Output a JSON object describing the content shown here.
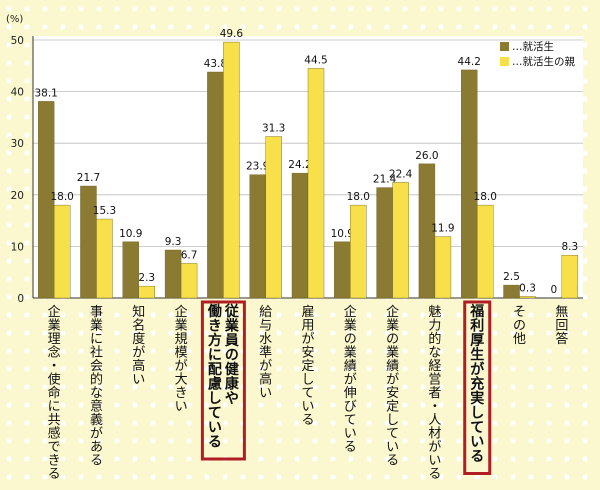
{
  "chart_data": {
    "type": "bar",
    "unit_label": "(%)",
    "ylim": [
      0,
      50
    ],
    "yticks": [
      0,
      10,
      20,
      30,
      40,
      50
    ],
    "grid": true,
    "legend_position": "top-right",
    "categories": [
      [
        "企業理念・使命に共感できる"
      ],
      [
        "事業に社会的な意義がある"
      ],
      [
        "知名度が高い"
      ],
      [
        "企業規模が大きい"
      ],
      [
        "従業員の健康や",
        "働き方に配慮している"
      ],
      [
        "給与水準が高い"
      ],
      [
        "雇用が安定している"
      ],
      [
        "企業の業績が伸びている"
      ],
      [
        "企業の業績が安定している"
      ],
      [
        "魅力的な経営者・人材がいる"
      ],
      [
        "福利厚生が充実している"
      ],
      [
        "その他"
      ],
      [
        "無回答"
      ]
    ],
    "highlighted_categories": [
      4,
      10
    ],
    "series": [
      {
        "name": "…就活生",
        "color": "#8b7b32",
        "values": [
          38.1,
          21.7,
          10.9,
          9.3,
          43.8,
          23.9,
          24.2,
          10.9,
          21.4,
          26.0,
          44.2,
          2.5,
          0
        ]
      },
      {
        "name": "…就活生の親",
        "color": "#f8e04a",
        "values": [
          18.0,
          15.3,
          2.3,
          6.7,
          49.6,
          31.3,
          44.5,
          18.0,
          22.4,
          11.9,
          18.0,
          0.3,
          8.3
        ]
      }
    ],
    "value_labels": [
      [
        "38.1",
        "21.7",
        "10.9",
        "9.3",
        "43.8",
        "23.9",
        "24.2",
        "10.9",
        "21.4",
        "26.0",
        "44.2",
        "2.5",
        "0"
      ],
      [
        "18.0",
        "15.3",
        "2.3",
        "6.7",
        "49.6",
        "31.3",
        "44.5",
        "18.0",
        "22.4",
        "11.9",
        "18.0",
        "0.3",
        "8.3"
      ]
    ],
    "highlight_color": "#b01e23"
  }
}
